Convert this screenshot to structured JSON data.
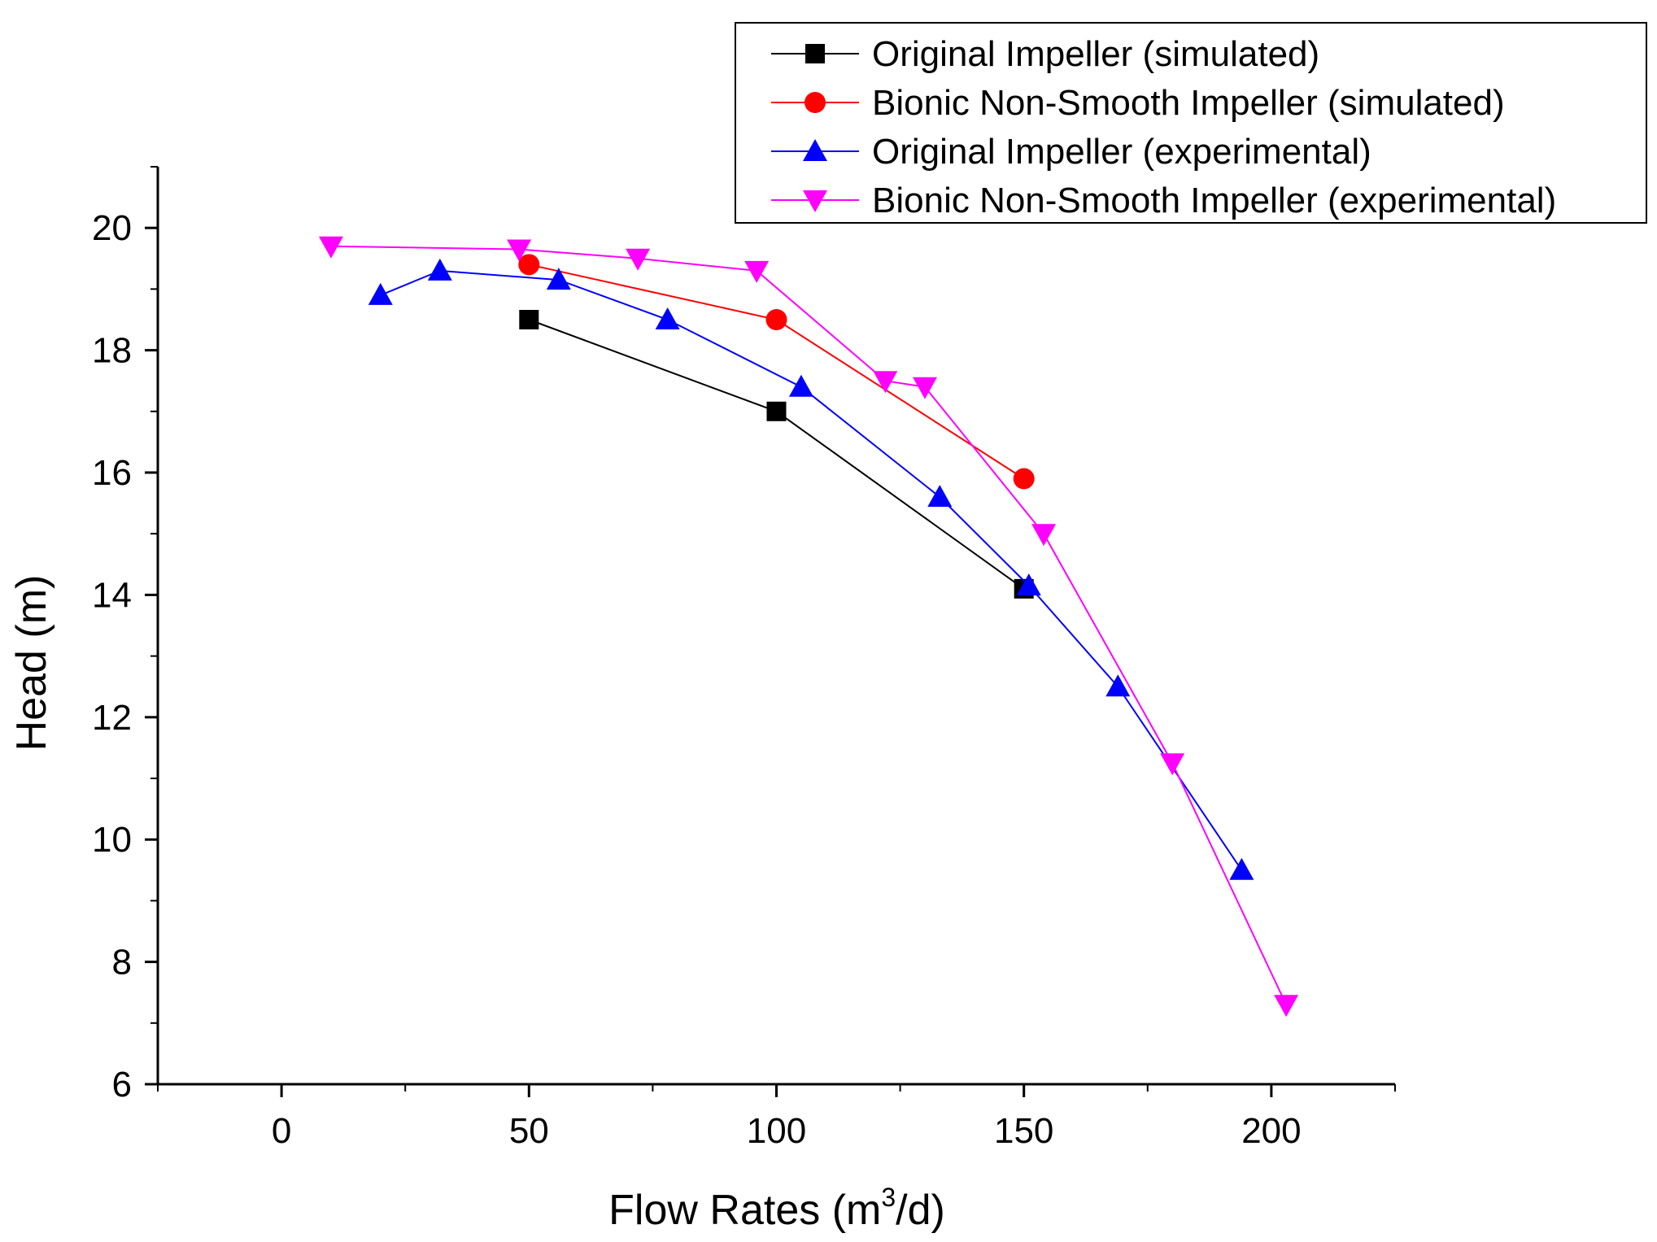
{
  "chart_data": {
    "type": "line",
    "title": "",
    "xlabel": "Flow Rates (m³/d)",
    "xlabel_base": "Flow Rates (m",
    "xlabel_sup": "3",
    "xlabel_end": "/d)",
    "ylabel": "Head (m)",
    "xlim": [
      -25,
      225
    ],
    "ylim": [
      6,
      21
    ],
    "xticks": [
      0,
      50,
      100,
      150,
      200
    ],
    "yticks": [
      6,
      8,
      10,
      12,
      14,
      16,
      18,
      20
    ],
    "xtick_labels": [
      "0",
      "50",
      "100",
      "150",
      "200"
    ],
    "ytick_labels": [
      "6",
      "8",
      "10",
      "12",
      "14",
      "16",
      "18",
      "20"
    ],
    "legend_position": "top-right",
    "grid": false,
    "series": [
      {
        "name": "Original Impeller (simulated)",
        "color": "#000000",
        "marker": "square",
        "x": [
          50,
          100,
          150
        ],
        "y": [
          18.5,
          17.0,
          14.1
        ]
      },
      {
        "name": "Bionic Non-Smooth Impeller (simulated)",
        "color": "#ff0000",
        "marker": "circle",
        "x": [
          50,
          100,
          150
        ],
        "y": [
          19.4,
          18.5,
          15.9
        ]
      },
      {
        "name": "Original Impeller (experimental)",
        "color": "#0000ff",
        "marker": "triangle-up",
        "x": [
          20,
          32,
          56,
          78,
          105,
          133,
          151,
          169,
          194
        ],
        "y": [
          18.9,
          19.3,
          19.15,
          18.5,
          17.4,
          15.6,
          14.15,
          12.5,
          9.5
        ]
      },
      {
        "name": "Bionic Non-Smooth Impeller (experimental)",
        "color": "#ff00ff",
        "marker": "triangle-down",
        "x": [
          10,
          48,
          72,
          96,
          122,
          130,
          154,
          180,
          203
        ],
        "y": [
          19.7,
          19.65,
          19.5,
          19.3,
          17.5,
          17.4,
          15.0,
          11.25,
          7.3
        ]
      }
    ]
  }
}
